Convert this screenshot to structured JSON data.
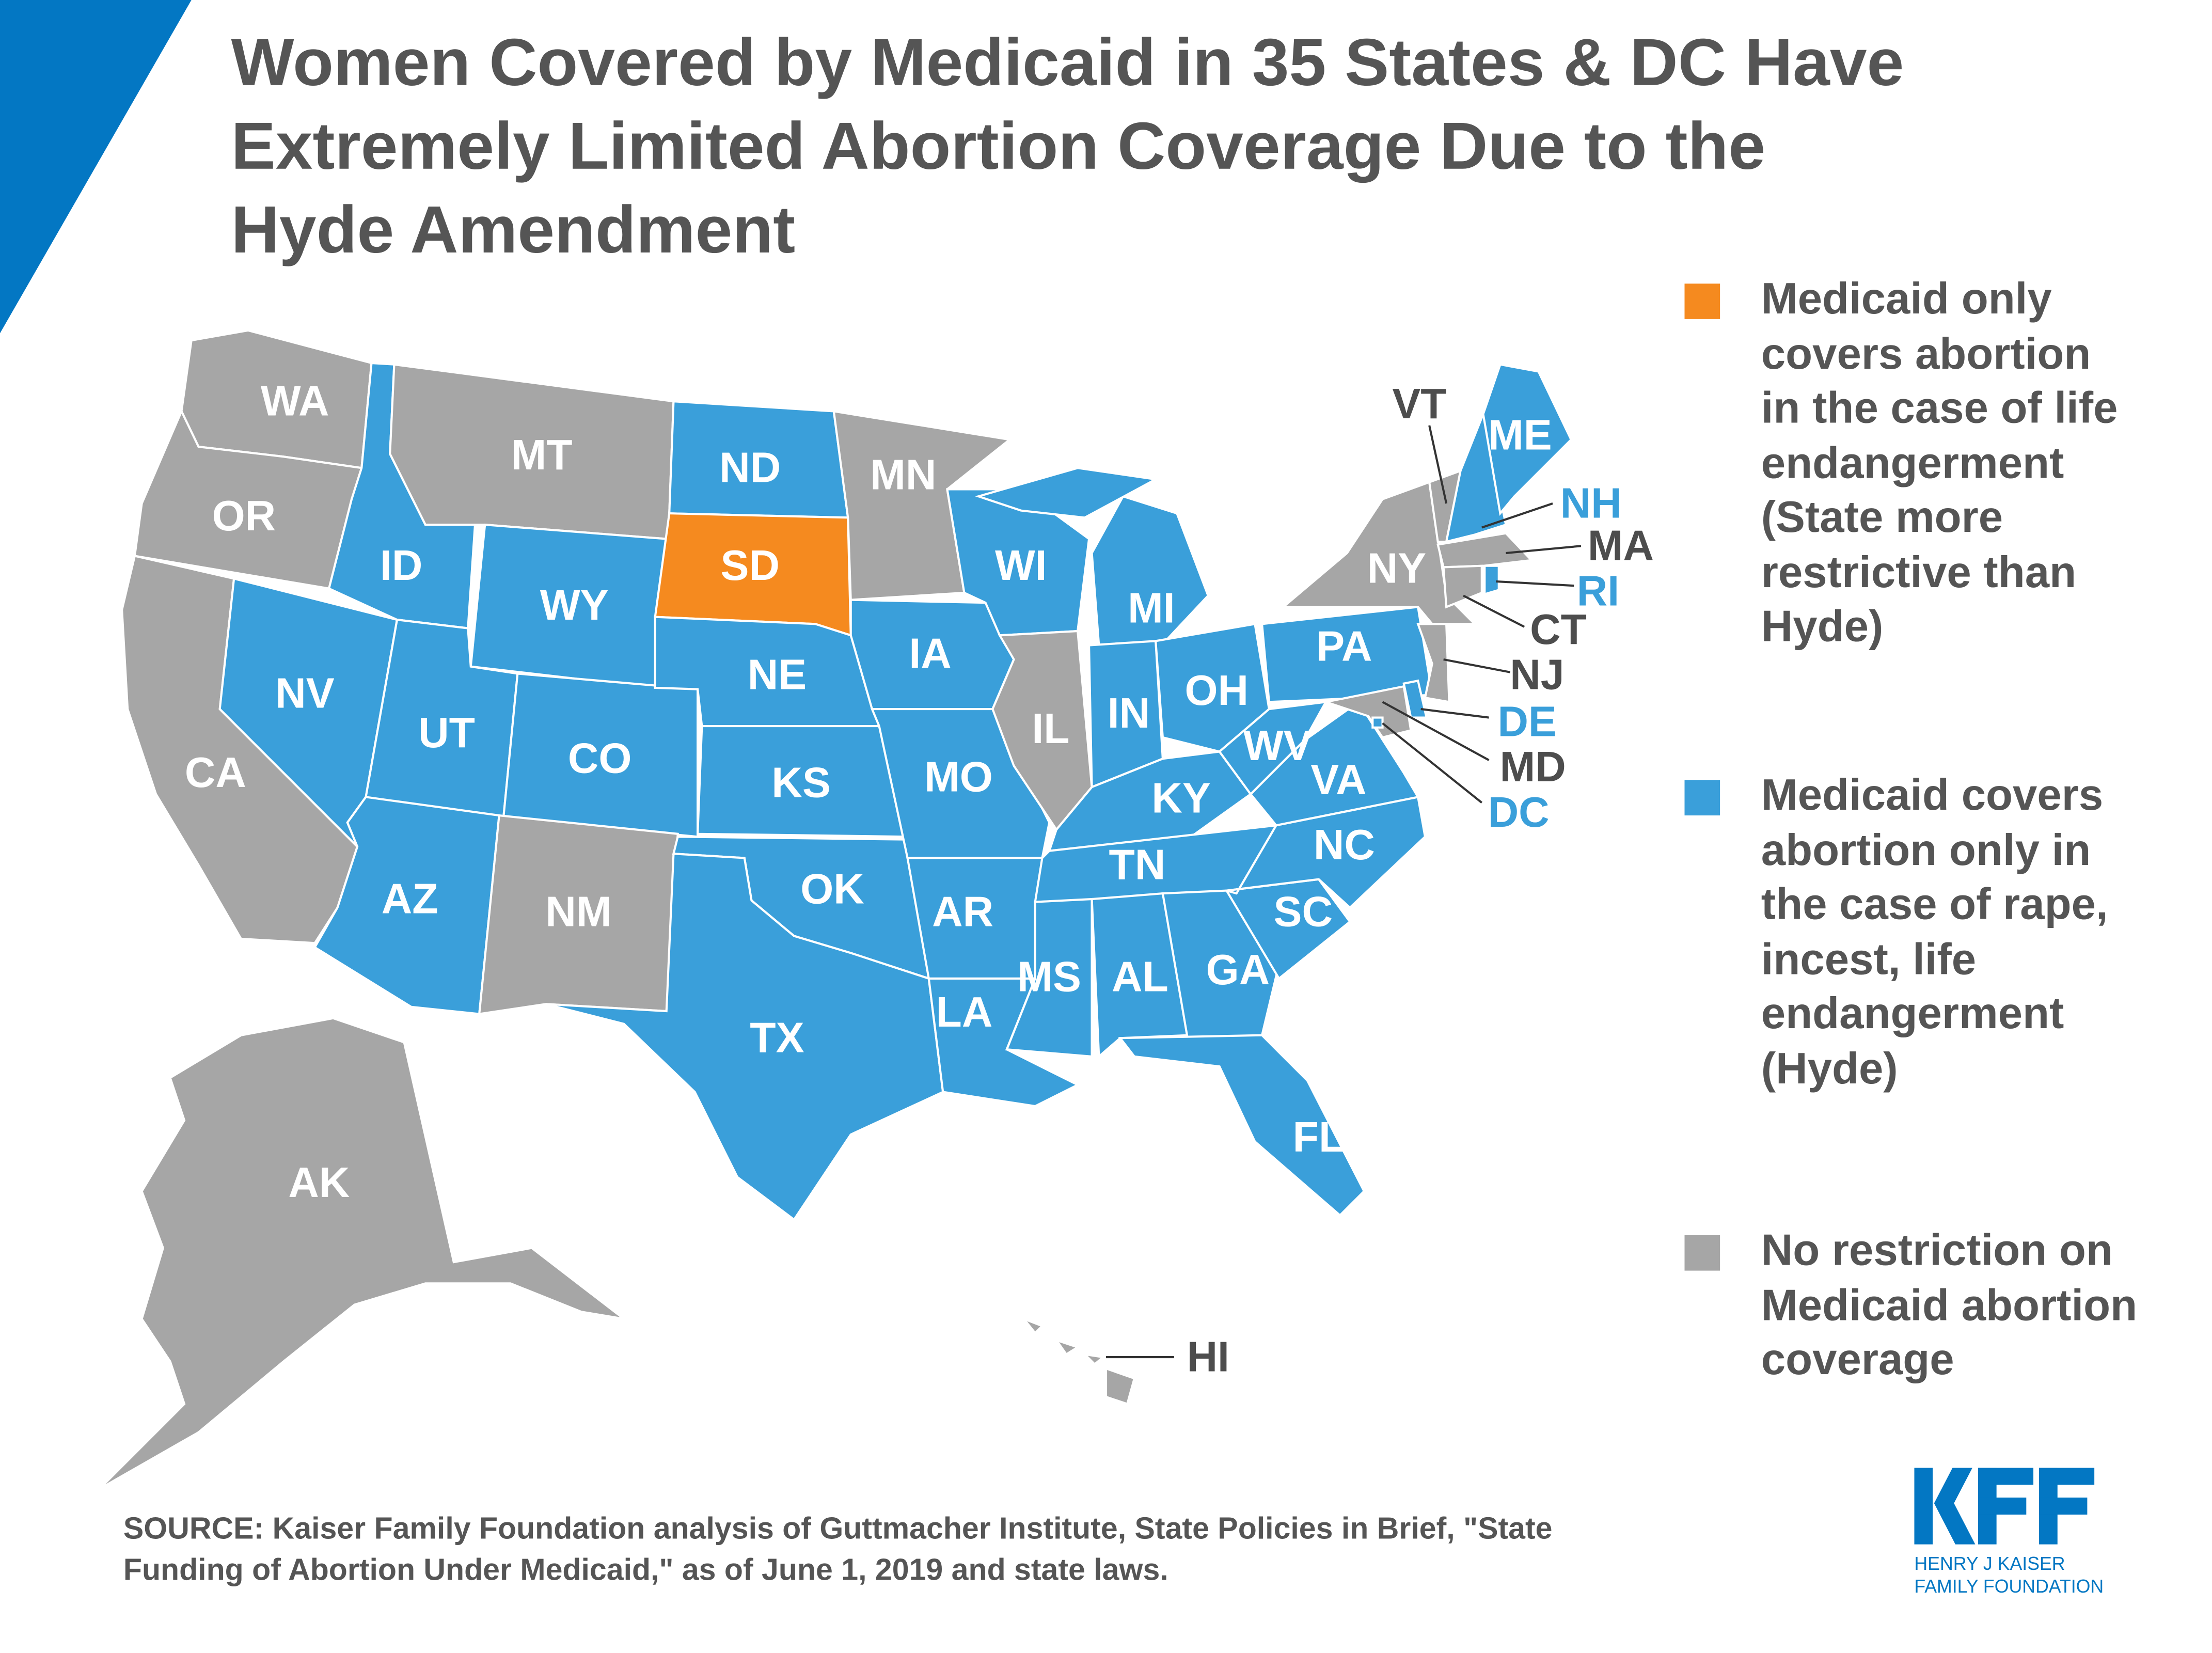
{
  "title": "Women Covered by Medicaid in 35 States & DC Have\nExtremely Limited Abortion Coverage Due to the\nHyde Amendment",
  "colors": {
    "life_only": "#F58A1F",
    "hyde": "#3A9FDA",
    "no_restriction": "#A6A6A6",
    "text": "#555555",
    "brand": "#0377C3"
  },
  "legend": [
    {
      "category": "life_only",
      "label": "Medicaid only\ncovers abortion\nin the case of life\nendangerment\n(State more\nrestrictive than\nHyde)"
    },
    {
      "category": "hyde",
      "label": "Medicaid covers\nabortion only in\nthe case of rape,\nincest, life\nendangerment\n(Hyde)"
    },
    {
      "category": "no_restriction",
      "label": "No restriction on\nMedicaid abortion\ncoverage"
    }
  ],
  "states": [
    {
      "code": "WA",
      "category": "no_restriction"
    },
    {
      "code": "OR",
      "category": "no_restriction"
    },
    {
      "code": "CA",
      "category": "no_restriction"
    },
    {
      "code": "NV",
      "category": "hyde"
    },
    {
      "code": "ID",
      "category": "hyde"
    },
    {
      "code": "MT",
      "category": "no_restriction"
    },
    {
      "code": "WY",
      "category": "hyde"
    },
    {
      "code": "UT",
      "category": "hyde"
    },
    {
      "code": "CO",
      "category": "hyde"
    },
    {
      "code": "AZ",
      "category": "hyde"
    },
    {
      "code": "NM",
      "category": "no_restriction"
    },
    {
      "code": "ND",
      "category": "hyde"
    },
    {
      "code": "SD",
      "category": "life_only"
    },
    {
      "code": "NE",
      "category": "hyde"
    },
    {
      "code": "KS",
      "category": "hyde"
    },
    {
      "code": "OK",
      "category": "hyde"
    },
    {
      "code": "TX",
      "category": "hyde"
    },
    {
      "code": "MN",
      "category": "no_restriction"
    },
    {
      "code": "IA",
      "category": "hyde"
    },
    {
      "code": "MO",
      "category": "hyde"
    },
    {
      "code": "AR",
      "category": "hyde"
    },
    {
      "code": "LA",
      "category": "hyde"
    },
    {
      "code": "WI",
      "category": "hyde"
    },
    {
      "code": "IL",
      "category": "no_restriction"
    },
    {
      "code": "MI",
      "category": "hyde"
    },
    {
      "code": "IN",
      "category": "hyde"
    },
    {
      "code": "OH",
      "category": "hyde"
    },
    {
      "code": "KY",
      "category": "hyde"
    },
    {
      "code": "TN",
      "category": "hyde"
    },
    {
      "code": "MS",
      "category": "hyde"
    },
    {
      "code": "AL",
      "category": "hyde"
    },
    {
      "code": "GA",
      "category": "hyde"
    },
    {
      "code": "FL",
      "category": "hyde"
    },
    {
      "code": "SC",
      "category": "hyde"
    },
    {
      "code": "NC",
      "category": "hyde"
    },
    {
      "code": "VA",
      "category": "hyde"
    },
    {
      "code": "WV",
      "category": "hyde"
    },
    {
      "code": "PA",
      "category": "hyde"
    },
    {
      "code": "NY",
      "category": "no_restriction"
    },
    {
      "code": "VT",
      "category": "no_restriction"
    },
    {
      "code": "NH",
      "category": "hyde"
    },
    {
      "code": "ME",
      "category": "hyde"
    },
    {
      "code": "MA",
      "category": "no_restriction"
    },
    {
      "code": "CT",
      "category": "no_restriction"
    },
    {
      "code": "RI",
      "category": "hyde"
    },
    {
      "code": "NJ",
      "category": "no_restriction"
    },
    {
      "code": "DE",
      "category": "hyde"
    },
    {
      "code": "MD",
      "category": "no_restriction"
    },
    {
      "code": "DC",
      "category": "hyde"
    },
    {
      "code": "AK",
      "category": "no_restriction"
    },
    {
      "code": "HI",
      "category": "no_restriction"
    }
  ],
  "source": "SOURCE: Kaiser Family Foundation analysis of Guttmacher Institute, State Policies in Brief, \"State\nFunding of Abortion Under Medicaid,\" as of June 1, 2019 and state laws.",
  "logo": {
    "mark": "KFF",
    "line1": "HENRY J KAISER",
    "line2": "FAMILY FOUNDATION"
  }
}
